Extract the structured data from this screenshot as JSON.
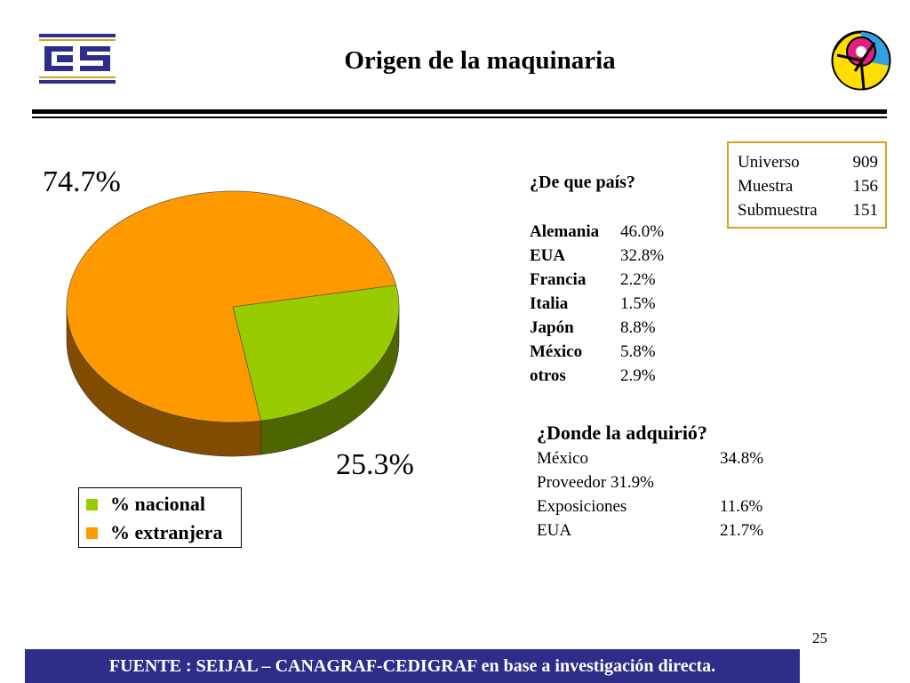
{
  "header": {
    "title": "Origen de la maquinaria"
  },
  "chart_data": {
    "type": "pie",
    "series": [
      {
        "name": "% nacional",
        "value": 25.3,
        "label": "25.3%",
        "color": "#99cc00"
      },
      {
        "name": "% extranjera",
        "value": 74.7,
        "label": "74.7%",
        "color": "#ff9900"
      }
    ],
    "legend_position": "bottom-left"
  },
  "legend": {
    "items": [
      {
        "label": "% nacional",
        "color": "#99cc00"
      },
      {
        "label": "% extranjera",
        "color": "#ff9900"
      }
    ]
  },
  "country_table": {
    "title": "¿De que país?",
    "rows": [
      {
        "name": "Alemania",
        "value": "46.0%"
      },
      {
        "name": "EUA",
        "value": "32.8%"
      },
      {
        "name": "Francia",
        "value": "2.2%"
      },
      {
        "name": "Italia",
        "value": "1.5%"
      },
      {
        "name": "Japón",
        "value": "8.8%"
      },
      {
        "name": "México",
        "value": "5.8%"
      },
      {
        "name": "otros",
        "value": "2.9%"
      }
    ]
  },
  "acquisition_table": {
    "title": "¿Donde la adquirió?",
    "rows": [
      {
        "name": "México",
        "value": "34.8%"
      },
      {
        "name": "Proveedor 31.9%",
        "value": ""
      },
      {
        "name": "Exposiciones",
        "value": "11.6%"
      },
      {
        "name": "EUA",
        "value": "21.7%"
      }
    ]
  },
  "sample": {
    "rows": [
      {
        "label": "Universo",
        "value": "909"
      },
      {
        "label": "Muestra",
        "value": "156"
      },
      {
        "label": "Submuestra",
        "value": "151"
      }
    ]
  },
  "footer": {
    "page_number": "25",
    "source": "FUENTE :  SEIJAL – CANAGRAF-CEDIGRAF en base a investigación directa."
  },
  "colors": {
    "footer_bg": "#2e2e8a",
    "sample_border": "#d8a020",
    "nacional": "#99cc00",
    "extranjera": "#ff9900"
  },
  "icons": {
    "left_logo": "canagraf-logo",
    "right_logo": "cedigraf-logo"
  }
}
